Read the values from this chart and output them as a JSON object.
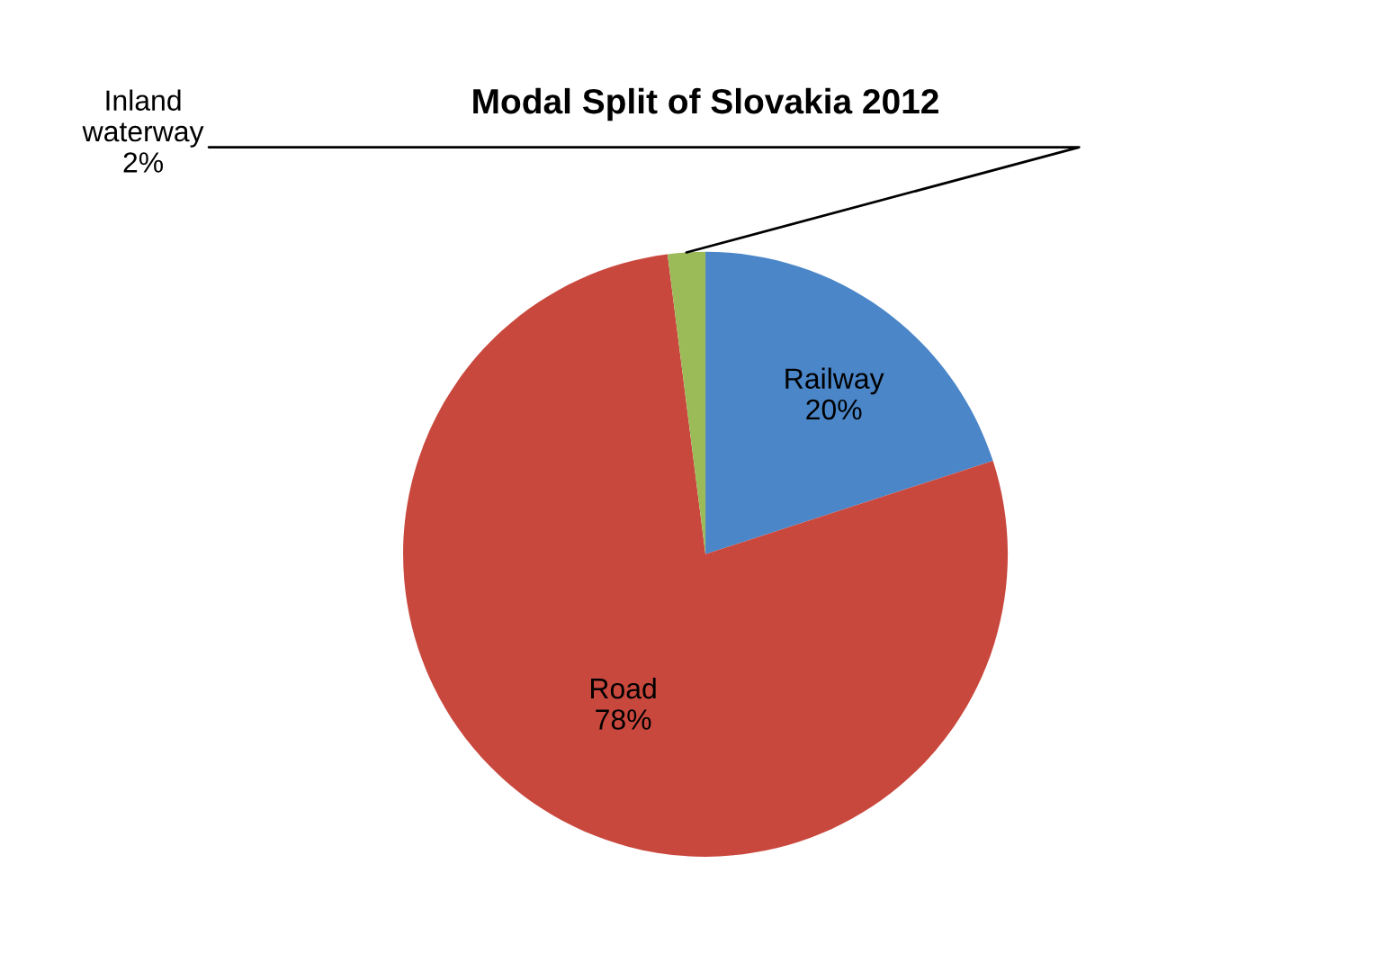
{
  "chart_data": {
    "type": "pie",
    "title": "Modal Split of Slovakia 2012",
    "categories": [
      "Railway",
      "Road",
      "Inland waterway"
    ],
    "values": [
      20,
      78,
      2
    ],
    "value_labels": [
      "20%",
      "78%",
      "2%"
    ],
    "colors": [
      "#4a86c8",
      "#c9483e",
      "#9bbb59"
    ],
    "data_labels": true,
    "legend": false
  }
}
